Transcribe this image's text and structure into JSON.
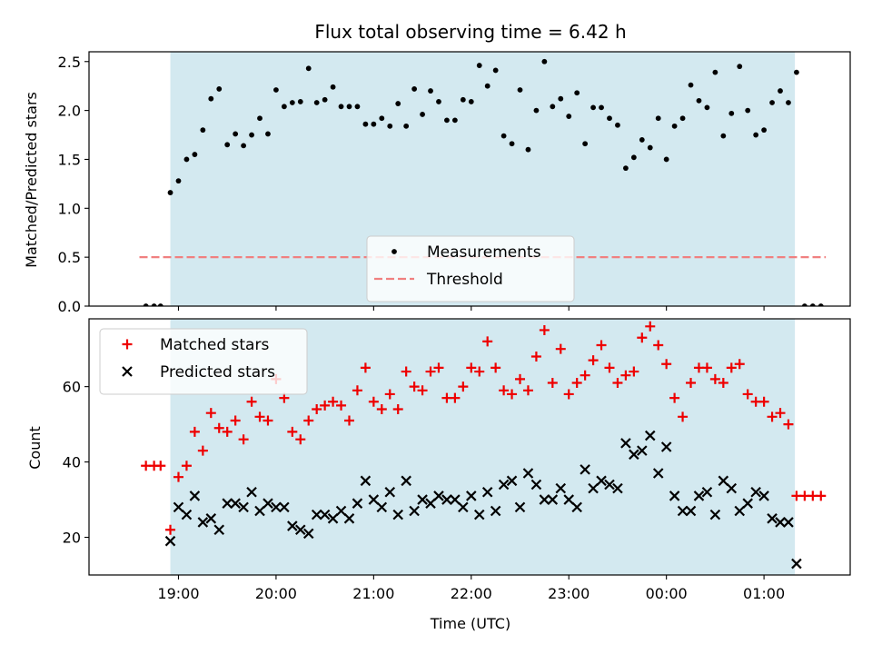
{
  "chart_data": [
    {
      "type": "scatter",
      "panel": "top",
      "title": "Flux total observing time = 6.42 h",
      "ylabel": "Matched/Predicted stars",
      "ylim": [
        0,
        2.6
      ],
      "yticks": [
        "0.0",
        "0.5",
        "1.0",
        "1.5",
        "2.0",
        "2.5"
      ],
      "shaded_interval": [
        "18:55",
        "01:19"
      ],
      "shade_color": "#d3e9f0",
      "legend_position": "lower center",
      "series": [
        {
          "name": "Measurements",
          "color": "#000000",
          "marker": "dot",
          "points": [
            [
              "18:40",
              0
            ],
            [
              "18:45",
              0
            ],
            [
              "18:49",
              0
            ],
            [
              "18:55",
              1.16
            ],
            [
              "19:00",
              1.28
            ],
            [
              "19:05",
              1.5
            ],
            [
              "19:10",
              1.55
            ],
            [
              "19:15",
              1.8
            ],
            [
              "19:20",
              2.12
            ],
            [
              "19:25",
              2.22
            ],
            [
              "19:30",
              1.65
            ],
            [
              "19:35",
              1.76
            ],
            [
              "19:40",
              1.64
            ],
            [
              "19:45",
              1.75
            ],
            [
              "19:50",
              1.92
            ],
            [
              "19:55",
              1.76
            ],
            [
              "20:00",
              2.21
            ],
            [
              "20:05",
              2.04
            ],
            [
              "20:10",
              2.08
            ],
            [
              "20:15",
              2.09
            ],
            [
              "20:20",
              2.43
            ],
            [
              "20:25",
              2.08
            ],
            [
              "20:30",
              2.11
            ],
            [
              "20:35",
              2.24
            ],
            [
              "20:40",
              2.04
            ],
            [
              "20:45",
              2.04
            ],
            [
              "20:50",
              2.04
            ],
            [
              "20:55",
              1.86
            ],
            [
              "21:00",
              1.86
            ],
            [
              "21:05",
              1.92
            ],
            [
              "21:10",
              1.84
            ],
            [
              "21:15",
              2.07
            ],
            [
              "21:20",
              1.84
            ],
            [
              "21:25",
              2.22
            ],
            [
              "21:30",
              1.96
            ],
            [
              "21:35",
              2.2
            ],
            [
              "21:40",
              2.09
            ],
            [
              "21:45",
              1.9
            ],
            [
              "21:50",
              1.9
            ],
            [
              "21:55",
              2.11
            ],
            [
              "22:00",
              2.09
            ],
            [
              "22:05",
              2.46
            ],
            [
              "22:10",
              2.25
            ],
            [
              "22:15",
              2.41
            ],
            [
              "22:20",
              1.74
            ],
            [
              "22:25",
              1.66
            ],
            [
              "22:30",
              2.21
            ],
            [
              "22:35",
              1.6
            ],
            [
              "22:40",
              2.0
            ],
            [
              "22:45",
              2.5
            ],
            [
              "22:50",
              2.04
            ],
            [
              "22:55",
              2.12
            ],
            [
              "23:00",
              1.94
            ],
            [
              "23:05",
              2.18
            ],
            [
              "23:10",
              1.66
            ],
            [
              "23:15",
              2.03
            ],
            [
              "23:20",
              2.03
            ],
            [
              "23:25",
              1.92
            ],
            [
              "23:30",
              1.85
            ],
            [
              "23:35",
              1.41
            ],
            [
              "23:40",
              1.52
            ],
            [
              "23:45",
              1.7
            ],
            [
              "23:50",
              1.62
            ],
            [
              "23:55",
              1.92
            ],
            [
              "00:00",
              1.5
            ],
            [
              "00:05",
              1.84
            ],
            [
              "00:10",
              1.92
            ],
            [
              "00:15",
              2.26
            ],
            [
              "00:20",
              2.1
            ],
            [
              "00:25",
              2.03
            ],
            [
              "00:30",
              2.39
            ],
            [
              "00:35",
              1.74
            ],
            [
              "00:40",
              1.97
            ],
            [
              "00:45",
              2.45
            ],
            [
              "00:50",
              2.0
            ],
            [
              "00:55",
              1.75
            ],
            [
              "01:00",
              1.8
            ],
            [
              "01:05",
              2.08
            ],
            [
              "01:10",
              2.2
            ],
            [
              "01:15",
              2.08
            ],
            [
              "01:20",
              2.39
            ],
            [
              "01:25",
              0
            ],
            [
              "01:30",
              0
            ],
            [
              "01:35",
              0
            ]
          ]
        },
        {
          "name": "Threshold",
          "color": "#f08080",
          "style": "dashed",
          "points": [
            [
              "18:36",
              0.5
            ],
            [
              "01:38",
              0.5
            ]
          ]
        }
      ]
    },
    {
      "type": "scatter",
      "panel": "bottom",
      "xlabel": "Time (UTC)",
      "ylabel": "Count",
      "ylim": [
        10,
        78
      ],
      "yticks": [
        "20",
        "40",
        "60"
      ],
      "xticks": [
        "19:00",
        "20:00",
        "21:00",
        "22:00",
        "23:00",
        "00:00",
        "01:00"
      ],
      "shaded_interval": [
        "18:55",
        "01:19"
      ],
      "shade_color": "#d3e9f0",
      "legend_position": "upper left",
      "series": [
        {
          "name": "Matched stars",
          "color": "#ee0000",
          "marker": "plus",
          "points": [
            [
              "18:40",
              39
            ],
            [
              "18:45",
              39
            ],
            [
              "18:49",
              39
            ],
            [
              "18:55",
              22
            ],
            [
              "19:00",
              36
            ],
            [
              "19:05",
              39
            ],
            [
              "19:10",
              48
            ],
            [
              "19:15",
              43
            ],
            [
              "19:20",
              53
            ],
            [
              "19:25",
              49
            ],
            [
              "19:30",
              48
            ],
            [
              "19:35",
              51
            ],
            [
              "19:40",
              46
            ],
            [
              "19:45",
              56
            ],
            [
              "19:50",
              52
            ],
            [
              "19:55",
              51
            ],
            [
              "20:00",
              62
            ],
            [
              "20:05",
              57
            ],
            [
              "20:10",
              48
            ],
            [
              "20:15",
              46
            ],
            [
              "20:20",
              51
            ],
            [
              "20:25",
              54
            ],
            [
              "20:30",
              55
            ],
            [
              "20:35",
              56
            ],
            [
              "20:40",
              55
            ],
            [
              "20:45",
              51
            ],
            [
              "20:50",
              59
            ],
            [
              "20:55",
              65
            ],
            [
              "21:00",
              56
            ],
            [
              "21:05",
              54
            ],
            [
              "21:10",
              58
            ],
            [
              "21:15",
              54
            ],
            [
              "21:20",
              64
            ],
            [
              "21:25",
              60
            ],
            [
              "21:30",
              59
            ],
            [
              "21:35",
              64
            ],
            [
              "21:40",
              65
            ],
            [
              "21:45",
              57
            ],
            [
              "21:50",
              57
            ],
            [
              "21:55",
              60
            ],
            [
              "22:00",
              65
            ],
            [
              "22:05",
              64
            ],
            [
              "22:10",
              72
            ],
            [
              "22:15",
              65
            ],
            [
              "22:20",
              59
            ],
            [
              "22:25",
              58
            ],
            [
              "22:30",
              62
            ],
            [
              "22:35",
              59
            ],
            [
              "22:40",
              68
            ],
            [
              "22:45",
              75
            ],
            [
              "22:50",
              61
            ],
            [
              "22:55",
              70
            ],
            [
              "23:00",
              58
            ],
            [
              "23:05",
              61
            ],
            [
              "23:10",
              63
            ],
            [
              "23:15",
              67
            ],
            [
              "23:20",
              71
            ],
            [
              "23:25",
              65
            ],
            [
              "23:30",
              61
            ],
            [
              "23:35",
              63
            ],
            [
              "23:40",
              64
            ],
            [
              "23:45",
              73
            ],
            [
              "23:50",
              76
            ],
            [
              "23:55",
              71
            ],
            [
              "00:00",
              66
            ],
            [
              "00:05",
              57
            ],
            [
              "00:10",
              52
            ],
            [
              "00:15",
              61
            ],
            [
              "00:20",
              65
            ],
            [
              "00:25",
              65
            ],
            [
              "00:30",
              62
            ],
            [
              "00:35",
              61
            ],
            [
              "00:40",
              65
            ],
            [
              "00:45",
              66
            ],
            [
              "00:50",
              58
            ],
            [
              "00:55",
              56
            ],
            [
              "01:00",
              56
            ],
            [
              "01:05",
              52
            ],
            [
              "01:10",
              53
            ],
            [
              "01:15",
              50
            ],
            [
              "01:20",
              31
            ],
            [
              "01:25",
              31
            ],
            [
              "01:30",
              31
            ],
            [
              "01:35",
              31
            ]
          ]
        },
        {
          "name": "Predicted stars",
          "color": "#000000",
          "marker": "x",
          "points": [
            [
              "18:55",
              19
            ],
            [
              "19:00",
              28
            ],
            [
              "19:05",
              26
            ],
            [
              "19:10",
              31
            ],
            [
              "19:15",
              24
            ],
            [
              "19:20",
              25
            ],
            [
              "19:25",
              22
            ],
            [
              "19:30",
              29
            ],
            [
              "19:35",
              29
            ],
            [
              "19:40",
              28
            ],
            [
              "19:45",
              32
            ],
            [
              "19:50",
              27
            ],
            [
              "19:55",
              29
            ],
            [
              "20:00",
              28
            ],
            [
              "20:05",
              28
            ],
            [
              "20:10",
              23
            ],
            [
              "20:15",
              22
            ],
            [
              "20:20",
              21
            ],
            [
              "20:25",
              26
            ],
            [
              "20:30",
              26
            ],
            [
              "20:35",
              25
            ],
            [
              "20:40",
              27
            ],
            [
              "20:45",
              25
            ],
            [
              "20:50",
              29
            ],
            [
              "20:55",
              35
            ],
            [
              "21:00",
              30
            ],
            [
              "21:05",
              28
            ],
            [
              "21:10",
              32
            ],
            [
              "21:15",
              26
            ],
            [
              "21:20",
              35
            ],
            [
              "21:25",
              27
            ],
            [
              "21:30",
              30
            ],
            [
              "21:35",
              29
            ],
            [
              "21:40",
              31
            ],
            [
              "21:45",
              30
            ],
            [
              "21:50",
              30
            ],
            [
              "21:55",
              28
            ],
            [
              "22:00",
              31
            ],
            [
              "22:05",
              26
            ],
            [
              "22:10",
              32
            ],
            [
              "22:15",
              27
            ],
            [
              "22:20",
              34
            ],
            [
              "22:25",
              35
            ],
            [
              "22:30",
              28
            ],
            [
              "22:35",
              37
            ],
            [
              "22:40",
              34
            ],
            [
              "22:45",
              30
            ],
            [
              "22:50",
              30
            ],
            [
              "22:55",
              33
            ],
            [
              "23:00",
              30
            ],
            [
              "23:05",
              28
            ],
            [
              "23:10",
              38
            ],
            [
              "23:15",
              33
            ],
            [
              "23:20",
              35
            ],
            [
              "23:25",
              34
            ],
            [
              "23:30",
              33
            ],
            [
              "23:35",
              45
            ],
            [
              "23:40",
              42
            ],
            [
              "23:45",
              43
            ],
            [
              "23:50",
              47
            ],
            [
              "23:55",
              37
            ],
            [
              "00:00",
              44
            ],
            [
              "00:05",
              31
            ],
            [
              "00:10",
              27
            ],
            [
              "00:15",
              27
            ],
            [
              "00:20",
              31
            ],
            [
              "00:25",
              32
            ],
            [
              "00:30",
              26
            ],
            [
              "00:35",
              35
            ],
            [
              "00:40",
              33
            ],
            [
              "00:45",
              27
            ],
            [
              "00:50",
              29
            ],
            [
              "00:55",
              32
            ],
            [
              "01:00",
              31
            ],
            [
              "01:05",
              25
            ],
            [
              "01:10",
              24
            ],
            [
              "01:15",
              24
            ],
            [
              "01:20",
              13
            ]
          ]
        }
      ]
    }
  ]
}
